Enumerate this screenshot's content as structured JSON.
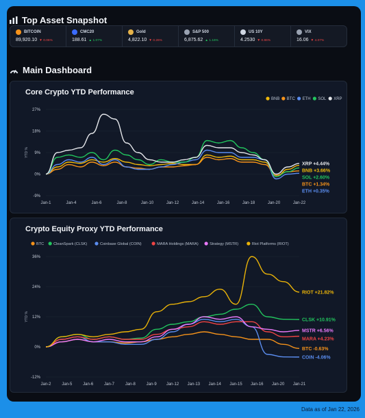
{
  "header": {
    "snapshot_title": "Top Asset Snapshot",
    "dashboard_title": "Main Dashboard"
  },
  "tickers": [
    {
      "name": "BITCOIN",
      "value": "89,920.10",
      "change": "▼ 0.06%",
      "color": "#f7931a",
      "dir": "down",
      "icon": "bitcoin-icon"
    },
    {
      "name": "CMC20",
      "value": "188.61",
      "change": "▲ 1.07%",
      "color": "#3b6cff",
      "dir": "up",
      "icon": "cmc20-icon"
    },
    {
      "name": "Gold",
      "value": "4,822.10",
      "change": "▼ 0.26%",
      "color": "#e6b34a",
      "dir": "down",
      "icon": "gold-icon"
    },
    {
      "name": "S&P 500",
      "value": "6,875.62",
      "change": "▲ 1.16%",
      "color": "#9aa3b2",
      "dir": "up",
      "icon": "sp500-icon"
    },
    {
      "name": "US 10Y",
      "value": "4.2530",
      "change": "▼ 0.86%",
      "color": "#cfd6e2",
      "dir": "down",
      "icon": "us10y-icon"
    },
    {
      "name": "VIX",
      "value": "16.06",
      "change": "▼ 4.07%",
      "color": "#9aa3b2",
      "dir": "down",
      "icon": "vix-icon"
    }
  ],
  "colors": {
    "up": "#22c55e",
    "down": "#ef4444"
  },
  "footer": {
    "note": "Data as of Jan 22, 2026"
  },
  "chart_data": [
    {
      "type": "line",
      "title": "Core Crypto YTD Performance",
      "ylabel": "YTD %",
      "ylim": [
        -9,
        27
      ],
      "yticks": [
        "27%",
        "18%",
        "9%",
        "0%",
        "-9%"
      ],
      "xticks": [
        "Jan-1",
        "Jan-4",
        "Jan-6",
        "Jan-8",
        "Jan-10",
        "Jan-12",
        "Jan-14",
        "Jan-16",
        "Jan-18",
        "Jan-20",
        "Jan-22"
      ],
      "legend": [
        "BNB",
        "BTC",
        "ETH",
        "SOL",
        "XRP"
      ],
      "series": [
        {
          "name": "BNB",
          "color": "#f0b90b",
          "label": "BNB +3.66%",
          "values": [
            0,
            3,
            5,
            4.5,
            6,
            5,
            6.5,
            5,
            4,
            3.5,
            4,
            4.5,
            4,
            4,
            8,
            7,
            7.5,
            6,
            6,
            5,
            -1,
            2,
            3.66
          ]
        },
        {
          "name": "BTC",
          "color": "#f7931a",
          "label": "BTC +1.34%",
          "values": [
            0,
            2,
            4,
            3,
            5,
            3.5,
            5,
            3,
            2.5,
            2,
            3,
            3,
            3.5,
            4,
            7,
            6,
            6.5,
            5,
            5,
            4,
            -0.5,
            1,
            1.34
          ]
        },
        {
          "name": "ETH",
          "color": "#5b8def",
          "label": "ETH +0.35%",
          "values": [
            0,
            4,
            6,
            5,
            7,
            4,
            6,
            3,
            2,
            2,
            3,
            4,
            5,
            6,
            10,
            9,
            9,
            7,
            7,
            6,
            -2,
            0,
            0.35
          ]
        },
        {
          "name": "SOL",
          "color": "#22c55e",
          "label": "SOL +2.60%",
          "values": [
            0,
            7,
            8,
            7,
            9,
            6,
            10,
            8,
            6,
            4,
            6,
            5,
            5,
            7,
            14,
            13,
            14,
            11,
            9,
            6,
            -1,
            1,
            2.6
          ]
        },
        {
          "name": "XRP",
          "color": "#e5e7eb",
          "label": "XRP +4.44%",
          "values": [
            0,
            9,
            10,
            11,
            17,
            25,
            23,
            13,
            9,
            6,
            5,
            5,
            6,
            7,
            12,
            11,
            11,
            9,
            8,
            6,
            0,
            3,
            4.44
          ]
        }
      ]
    },
    {
      "type": "line",
      "title": "Crypto Equity Proxy YTD Performance",
      "ylabel": "YTD %",
      "ylim": [
        -12,
        36
      ],
      "yticks": [
        "36%",
        "24%",
        "12%",
        "0%",
        "-12%"
      ],
      "xticks": [
        "Jan-2",
        "Jan-5",
        "Jan-6",
        "Jan-7",
        "Jan-8",
        "Jan-9",
        "Jan-12",
        "Jan-13",
        "Jan-14",
        "Jan-15",
        "Jan-16",
        "Jan-20",
        "Jan-21"
      ],
      "legend": [
        "BTC",
        "CleanSpark (CLSK)",
        "Coinbase Global (COIN)",
        "MARA Holdings (MARA)",
        "Strategy (MSTR)",
        "Riot Platforms (RIOT)"
      ],
      "series": [
        {
          "name": "BTC",
          "color": "#f7931a",
          "label": "BTC -0.63%",
          "values": [
            0,
            2,
            3,
            2,
            2,
            1.5,
            2,
            3,
            4,
            5,
            6,
            5,
            4,
            3,
            3,
            1,
            -0.63
          ]
        },
        {
          "name": "CLSK",
          "color": "#22c55e",
          "label": "CLSK +10.91%",
          "values": [
            0,
            4,
            5,
            3,
            4,
            3,
            3.5,
            7,
            9,
            10,
            12,
            13,
            15,
            17,
            12,
            11,
            10.91
          ]
        },
        {
          "name": "COIN",
          "color": "#5b8def",
          "label": "COIN -4.06%",
          "values": [
            0,
            3,
            4,
            2,
            2,
            1,
            1,
            3,
            6,
            9,
            11,
            10,
            11,
            8,
            -3,
            -4,
            -4.06
          ]
        },
        {
          "name": "MARA",
          "color": "#ef4444",
          "label": "MARA +4.23%",
          "values": [
            0,
            3,
            4,
            3,
            4,
            3,
            3,
            5,
            7,
            8,
            10,
            9,
            10,
            10,
            6,
            4,
            4.23
          ]
        },
        {
          "name": "MSTR",
          "color": "#e879f9",
          "label": "MSTR +6.56%",
          "values": [
            0,
            2,
            3,
            2,
            3,
            2,
            2,
            4,
            7,
            9,
            12,
            11,
            12,
            8,
            7,
            6,
            6.56
          ]
        },
        {
          "name": "RIOT",
          "color": "#eab308",
          "label": "RIOT +21.82%",
          "values": [
            0,
            4,
            5,
            4,
            5,
            6,
            7,
            14,
            17,
            18,
            20,
            23,
            17,
            36,
            29,
            26,
            21.82
          ]
        }
      ]
    }
  ]
}
